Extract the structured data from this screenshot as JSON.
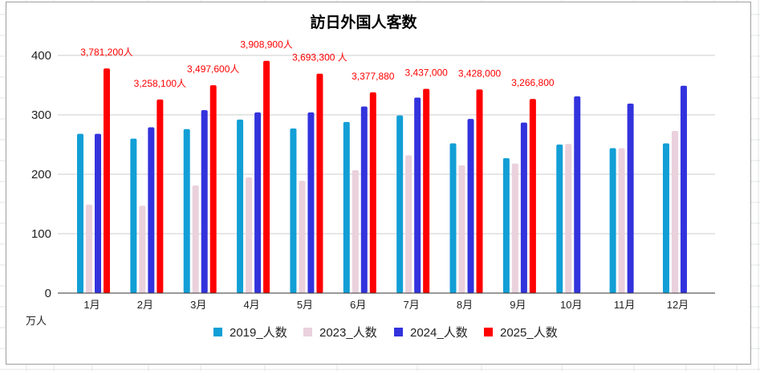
{
  "chart_data": {
    "type": "bar",
    "title": "訪日外国人客数",
    "xlabel": "",
    "ylabel": "",
    "unit_label": "万人",
    "ylim": [
      0,
      400
    ],
    "yticks": [
      0,
      100,
      200,
      300,
      400
    ],
    "grid": true,
    "legend_position": "bottom",
    "categories": [
      "1月",
      "2月",
      "3月",
      "4月",
      "5月",
      "6月",
      "7月",
      "8月",
      "9月",
      "10月",
      "11月",
      "12月"
    ],
    "series": [
      {
        "name": "2019_人数",
        "color": "#129fd6",
        "values": [
          268,
          260,
          276,
          292,
          277,
          288,
          299,
          252,
          227,
          250,
          244,
          252
        ]
      },
      {
        "name": "2023_人数",
        "color": "#ead1dc",
        "values": [
          149,
          147,
          181,
          195,
          189,
          207,
          232,
          215,
          218,
          251,
          244,
          273
        ]
      },
      {
        "name": "2024_人数",
        "color": "#3333dd",
        "values": [
          268,
          279,
          308,
          304,
          304,
          314,
          329,
          293,
          287,
          331,
          319,
          349
        ]
      },
      {
        "name": "2025_人数",
        "color": "#ff0000",
        "values": [
          378.1,
          325.8,
          349.8,
          390.9,
          369.3,
          337.8,
          343.7,
          342.8,
          326.7,
          null,
          null,
          null
        ]
      }
    ],
    "data_labels": {
      "series": "2025_人数",
      "color": "#ff0000",
      "labels": [
        "3,781,200人",
        "3,258,100人",
        "3,497,600人",
        "3,908,900人",
        "3,693,300 人",
        "3,377,880",
        "3,437,000",
        "3,428,000",
        "3,266,800",
        null,
        null,
        null
      ]
    }
  }
}
